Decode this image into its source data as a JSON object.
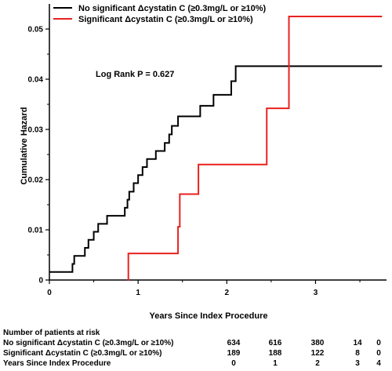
{
  "chart_data": {
    "type": "line",
    "xlabel": "Years Since Index Procedure",
    "ylabel": "Cumulative Hazard",
    "xlim": [
      0,
      3.8
    ],
    "ylim": [
      0,
      0.055
    ],
    "x_ticks": [
      "0",
      "1",
      "2",
      "3"
    ],
    "y_ticks": [
      "0",
      "0.01",
      "0.02",
      "0.03",
      "0.04",
      "0.05"
    ],
    "annotation": "Log Rank P = 0.627",
    "legend_position": "top-left",
    "series": [
      {
        "name": "No significant Δcystatin C (≥0.3mg/L or ≥10%)",
        "color": "#000000",
        "x": [
          0,
          0.26,
          0.28,
          0.4,
          0.44,
          0.5,
          0.55,
          0.65,
          0.85,
          0.88,
          0.9,
          0.95,
          1.0,
          1.05,
          1.1,
          1.2,
          1.3,
          1.35,
          1.38,
          1.45,
          1.6,
          1.7,
          1.75,
          1.85,
          2.0,
          2.05,
          2.1,
          3.75
        ],
        "y": [
          0.0016,
          0.0032,
          0.0048,
          0.0064,
          0.008,
          0.0096,
          0.0112,
          0.0128,
          0.0144,
          0.016,
          0.0176,
          0.0193,
          0.0209,
          0.0225,
          0.0241,
          0.0257,
          0.0273,
          0.029,
          0.0307,
          0.0326,
          0.0326,
          0.0347,
          0.0347,
          0.0369,
          0.0369,
          0.0396,
          0.0426,
          0.0426
        ]
      },
      {
        "name": "Significant Δcystatin C (≥0.3mg/L or ≥10%)",
        "color": "#e8221f",
        "x": [
          0.88,
          0.89,
          1.45,
          1.47,
          1.68,
          2.45,
          2.7,
          3.75
        ],
        "y": [
          0,
          0.0053,
          0.0106,
          0.0171,
          0.023,
          0.0342,
          0.0525,
          0.0525
        ]
      }
    ]
  },
  "risk_table": {
    "title": "Number of patients at risk",
    "rows": [
      {
        "label": "No significant Δcystatin C (≥0.3mg/L or ≥10%)",
        "values": [
          "634",
          "616",
          "380",
          "14",
          "0"
        ]
      },
      {
        "label": "Significant Δcystatin C (≥0.3mg/L or ≥10%)",
        "values": [
          "189",
          "188",
          "122",
          "8",
          "0"
        ]
      },
      {
        "label": "Years Since Index Procedure",
        "values": [
          "0",
          "1",
          "2",
          "3",
          "4"
        ]
      }
    ]
  }
}
